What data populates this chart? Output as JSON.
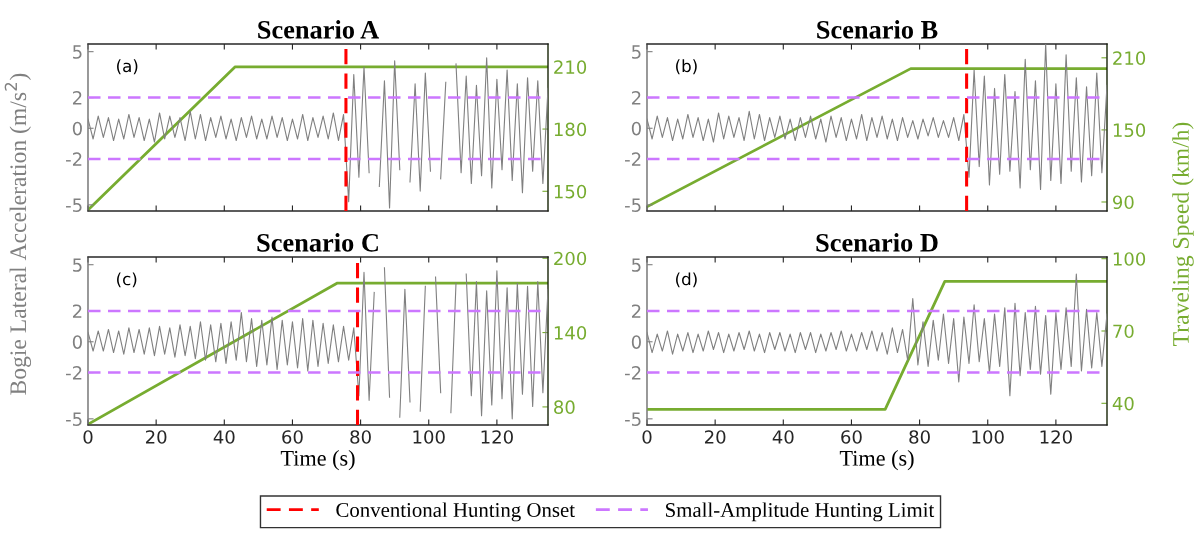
{
  "chart_data": [
    {
      "type": "line",
      "title": "Scenario A",
      "ylabel": "Bogie Lateral Acceleration (m/s$^{2}$)",
      "annotations": [
        "(a)"
      ],
      "tick_labels": "y",
      "legend": "bottom",
      "grid": false,
      "x": [
        0,
        1.5,
        3,
        4.5,
        6,
        7.5,
        9,
        10.5,
        12,
        13.5,
        15,
        16.5,
        18,
        19.5,
        21,
        22.5,
        24,
        25.5,
        27,
        28.5,
        30,
        31.5,
        33,
        34.5,
        36,
        37.5,
        39,
        40.5,
        42,
        43.5,
        45,
        46.5,
        48,
        49.5,
        51,
        52.5,
        54,
        55.5,
        57,
        58.5,
        60,
        61.5,
        63,
        64.5,
        66,
        67.5,
        69,
        70.5,
        72,
        73.5,
        75,
        76.5,
        78,
        79.5,
        81,
        82.5,
        84,
        85.5,
        87,
        88.5,
        90,
        91.5,
        93,
        94.5,
        96,
        97.5,
        99,
        100.5,
        102,
        103.5,
        105,
        106.5,
        108,
        109.5,
        111,
        112.5,
        114,
        115.5,
        117,
        118.5,
        120,
        121.5,
        123,
        124.5,
        126,
        127.5,
        129,
        130.5,
        132,
        133.5,
        135
      ],
      "xlim": [
        0,
        135
      ],
      "xticks": [
        0,
        20,
        40,
        60,
        80,
        100,
        120
      ],
      "ylim": [
        -5.4,
        5.5
      ],
      "yticks": [
        -5,
        -2,
        0,
        2,
        5
      ],
      "y2lim": [
        140.5,
        221
      ],
      "y2ticks": [
        150,
        180,
        210
      ],
      "series": [
        {
          "color": "#808080",
          "values": [
            0.6,
            -0.7,
            0.8,
            -0.6,
            0.7,
            -0.8,
            0.6,
            -0.7,
            0.9,
            -0.6,
            0.7,
            -0.8,
            0.6,
            -0.9,
            1.0,
            -0.7,
            0.8,
            -0.6,
            0.7,
            -0.8,
            1.1,
            -0.7,
            0.9,
            -0.8,
            0.7,
            -0.6,
            0.8,
            -0.7,
            0.6,
            -0.8,
            0.7,
            -0.6,
            0.8,
            -0.7,
            0.6,
            -0.7,
            0.8,
            -0.6,
            0.7,
            -0.8,
            0.6,
            -0.7,
            0.9,
            -0.8,
            0.7,
            -0.6,
            0.8,
            -0.7,
            1.0,
            -0.8,
            0.9,
            -4.8,
            3.5,
            -3.2,
            4.0,
            -2.9,
            null,
            -3.8,
            3.1,
            -5.2,
            4.4,
            -2.7,
            null,
            -3.5,
            2.9,
            -4.1,
            3.6,
            -2.8,
            null,
            -3.3,
            3.0,
            null,
            4.2,
            -2.9,
            3.4,
            -3.6,
            2.8,
            -3.1,
            4.6,
            -3.9,
            3.2,
            -2.7,
            3.8,
            -3.4,
            2.9,
            -4.2,
            3.3,
            -2.8,
            3.1,
            -3.6,
            2.6
          ]
        },
        {
          "color": "#77ac30",
          "axis": "y2",
          "x": [
            0,
            43.2,
            135
          ],
          "values": [
            141,
            210,
            210
          ]
        }
      ],
      "ref_lines": [
        {
          "axis": "x",
          "value": 75.7,
          "label": "Conventional Hunting Onset",
          "color": "#ff0000",
          "line_style": "dashed"
        },
        {
          "axis": "y",
          "value": 2,
          "label": "Small-Amplitude Hunting Limit",
          "color": "#cc77ff",
          "line_style": "dashed"
        },
        {
          "axis": "y",
          "value": -2,
          "color": "#cc77ff",
          "line_style": "dashed"
        }
      ]
    },
    {
      "type": "line",
      "title": "Scenario B",
      "y2label": "Traveling Speed (km/h)",
      "annotations": [
        "(b)"
      ],
      "tick_labels": "y",
      "grid": false,
      "x": [
        0,
        1.5,
        3,
        4.5,
        6,
        7.5,
        9,
        10.5,
        12,
        13.5,
        15,
        16.5,
        18,
        19.5,
        21,
        22.5,
        24,
        25.5,
        27,
        28.5,
        30,
        31.5,
        33,
        34.5,
        36,
        37.5,
        39,
        40.5,
        42,
        43.5,
        45,
        46.5,
        48,
        49.5,
        51,
        52.5,
        54,
        55.5,
        57,
        58.5,
        60,
        61.5,
        63,
        64.5,
        66,
        67.5,
        69,
        70.5,
        72,
        73.5,
        75,
        76.5,
        78,
        79.5,
        81,
        82.5,
        84,
        85.5,
        87,
        88.5,
        90,
        91.5,
        93,
        94.5,
        96,
        97.5,
        99,
        100.5,
        102,
        103.5,
        105,
        106.5,
        108,
        109.5,
        111,
        112.5,
        114,
        115.5,
        117,
        118.5,
        120,
        121.5,
        123,
        124.5,
        126,
        127.5,
        129,
        130.5,
        132,
        133.5,
        135
      ],
      "xlim": [
        0,
        135
      ],
      "xticks": [
        0,
        20,
        40,
        60,
        80,
        100,
        120
      ],
      "ylim": [
        -5.4,
        5.5
      ],
      "yticks": [
        -5,
        -2,
        0,
        2,
        5
      ],
      "y2lim": [
        82.5,
        221.5
      ],
      "y2ticks": [
        90,
        150,
        210
      ],
      "series": [
        {
          "color": "#808080",
          "values": [
            0.6,
            -0.7,
            0.8,
            -0.6,
            0.7,
            -0.8,
            0.6,
            -0.7,
            0.9,
            -0.6,
            0.7,
            -0.8,
            0.6,
            -0.9,
            1.0,
            -0.7,
            0.8,
            -0.6,
            0.7,
            -0.8,
            1.1,
            -0.7,
            0.9,
            -0.8,
            0.7,
            -0.6,
            0.8,
            -0.7,
            0.6,
            -0.8,
            0.7,
            -0.6,
            0.8,
            -0.7,
            0.6,
            -0.9,
            0.8,
            -0.6,
            0.7,
            -0.8,
            0.6,
            -0.7,
            0.9,
            -0.8,
            0.7,
            -0.6,
            0.8,
            -0.7,
            0.6,
            -0.8,
            0.7,
            -0.6,
            0.5,
            -0.7,
            0.6,
            -0.5,
            0.7,
            -0.6,
            0.5,
            -0.6,
            0.7,
            -0.8,
            0.9,
            -3.2,
            3.8,
            -2.5,
            3.4,
            -3.7,
            2.6,
            -3.0,
            3.5,
            -2.8,
            2.4,
            -3.9,
            4.5,
            -2.7,
            3.1,
            -4.0,
            5.5,
            -3.4,
            2.9,
            -3.6,
            4.8,
            -2.8,
            3.3,
            -3.5,
            2.7,
            -3.1,
            3.6,
            -2.9,
            2.8
          ]
        },
        {
          "color": "#77ac30",
          "axis": "y2",
          "x": [
            0,
            77.4,
            135
          ],
          "values": [
            86,
            201,
            201
          ]
        }
      ],
      "ref_lines": [
        {
          "axis": "x",
          "value": 93.8,
          "color": "#ff0000",
          "line_style": "dashed"
        },
        {
          "axis": "y",
          "value": 2,
          "color": "#cc77ff",
          "line_style": "dashed"
        },
        {
          "axis": "y",
          "value": -2,
          "color": "#cc77ff",
          "line_style": "dashed"
        }
      ]
    },
    {
      "type": "line",
      "title": "Scenario C",
      "xlabel": "Time (s)",
      "annotations": [
        "(c)"
      ],
      "grid": false,
      "x": [
        0,
        1.5,
        3,
        4.5,
        6,
        7.5,
        9,
        10.5,
        12,
        13.5,
        15,
        16.5,
        18,
        19.5,
        21,
        22.5,
        24,
        25.5,
        27,
        28.5,
        30,
        31.5,
        33,
        34.5,
        36,
        37.5,
        39,
        40.5,
        42,
        43.5,
        45,
        46.5,
        48,
        49.5,
        51,
        52.5,
        54,
        55.5,
        57,
        58.5,
        60,
        61.5,
        63,
        64.5,
        66,
        67.5,
        69,
        70.5,
        72,
        73.5,
        75,
        76.5,
        78,
        79.5,
        81,
        82.5,
        84,
        85.5,
        87,
        88.5,
        90,
        91.5,
        93,
        94.5,
        96,
        97.5,
        99,
        100.5,
        102,
        103.5,
        105,
        106.5,
        108,
        109.5,
        111,
        112.5,
        114,
        115.5,
        117,
        118.5,
        120,
        121.5,
        123,
        124.5,
        126,
        127.5,
        129,
        130.5,
        132,
        133.5,
        135
      ],
      "xlim": [
        0,
        135
      ],
      "xticks": [
        0,
        20,
        40,
        60,
        80,
        100,
        120
      ],
      "ylim": [
        -5.4,
        5.5
      ],
      "yticks": [
        -5,
        -2,
        0,
        2,
        5
      ],
      "y2lim": [
        65.4,
        201
      ],
      "y2ticks": [
        80,
        140,
        200
      ],
      "series": [
        {
          "color": "#808080",
          "values": [
            0.6,
            -0.6,
            0.7,
            -0.6,
            0.8,
            -0.7,
            0.7,
            -0.8,
            0.9,
            -0.7,
            0.8,
            -0.8,
            0.9,
            -0.9,
            1.0,
            -0.8,
            0.9,
            -1.0,
            1.1,
            -0.9,
            1.0,
            -1.1,
            1.3,
            -1.2,
            1.1,
            -1.3,
            1.2,
            -1.4,
            1.3,
            -1.2,
            1.9,
            -1.3,
            1.5,
            -1.6,
            1.4,
            -1.5,
            1.6,
            -1.8,
            1.4,
            -1.5,
            1.3,
            -1.7,
            1.5,
            -1.9,
            1.4,
            -1.6,
            1.2,
            -1.4,
            1.1,
            -1.3,
            1.0,
            -1.2,
            0.9,
            -3.5,
            4.5,
            -3.8,
            3.2,
            null,
            4.8,
            -3.6,
            null,
            -4.9,
            3.4,
            -3.9,
            null,
            -4.5,
            3.6,
            null,
            4.2,
            -3.3,
            null,
            -4.6,
            3.8,
            null,
            4.4,
            -3.5,
            3.9,
            -4.8,
            3.3,
            -4.1,
            4.6,
            -3.7,
            3.5,
            -5.0,
            3.8,
            -3.4,
            3.6,
            -4.2,
            3.9,
            -3.3,
            3.4
          ]
        },
        {
          "color": "#77ac30",
          "axis": "y2",
          "x": [
            0,
            73.2,
            135
          ],
          "values": [
            66,
            180,
            180
          ]
        }
      ],
      "ref_lines": [
        {
          "axis": "x",
          "value": 79.1,
          "color": "#ff0000",
          "line_style": "dashed"
        },
        {
          "axis": "y",
          "value": 2,
          "color": "#cc77ff",
          "line_style": "dashed"
        },
        {
          "axis": "y",
          "value": -2,
          "color": "#cc77ff",
          "line_style": "dashed"
        }
      ]
    },
    {
      "type": "line",
      "title": "Scenario D",
      "xlabel": "Time (s)",
      "annotations": [
        "(d)"
      ],
      "grid": false,
      "x": [
        0,
        1.5,
        3,
        4.5,
        6,
        7.5,
        9,
        10.5,
        12,
        13.5,
        15,
        16.5,
        18,
        19.5,
        21,
        22.5,
        24,
        25.5,
        27,
        28.5,
        30,
        31.5,
        33,
        34.5,
        36,
        37.5,
        39,
        40.5,
        42,
        43.5,
        45,
        46.5,
        48,
        49.5,
        51,
        52.5,
        54,
        55.5,
        57,
        58.5,
        60,
        61.5,
        63,
        64.5,
        66,
        67.5,
        69,
        70.5,
        72,
        73.5,
        75,
        76.5,
        78,
        79.5,
        81,
        82.5,
        84,
        85.5,
        87,
        88.5,
        90,
        91.5,
        93,
        94.5,
        96,
        97.5,
        99,
        100.5,
        102,
        103.5,
        105,
        106.5,
        108,
        109.5,
        111,
        112.5,
        114,
        115.5,
        117,
        118.5,
        120,
        121.5,
        123,
        124.5,
        126,
        127.5,
        129,
        130.5,
        132,
        133.5,
        135
      ],
      "xlim": [
        0,
        135
      ],
      "xticks": [
        0,
        20,
        40,
        60,
        80,
        100,
        120
      ],
      "ylim": [
        -5.4,
        5.5
      ],
      "yticks": [
        -5,
        -2,
        0,
        2,
        5
      ],
      "y2lim": [
        31,
        100.7
      ],
      "y2ticks": [
        40,
        70,
        100
      ],
      "series": [
        {
          "color": "#808080",
          "values": [
            0.6,
            -0.7,
            0.5,
            -0.6,
            0.7,
            -0.8,
            0.5,
            -0.6,
            0.6,
            -0.7,
            0.5,
            -0.6,
            0.7,
            -0.5,
            0.6,
            -0.7,
            0.5,
            -0.6,
            0.6,
            -0.5,
            0.7,
            -0.6,
            0.5,
            -0.7,
            0.6,
            -0.5,
            0.6,
            -0.6,
            0.5,
            -0.7,
            0.6,
            -0.5,
            0.6,
            -0.7,
            0.5,
            -0.6,
            0.6,
            -0.5,
            0.7,
            -0.6,
            0.5,
            -0.6,
            0.6,
            -0.5,
            0.7,
            -0.6,
            0.6,
            -0.8,
            0.9,
            -0.7,
            0.8,
            -1.2,
            2.8,
            -1.5,
            1.3,
            -1.6,
            1.4,
            -1.2,
            1.8,
            -1.4,
            1.5,
            -2.6,
            1.6,
            -1.4,
            2.4,
            -1.3,
            1.5,
            -2.0,
            1.8,
            -1.6,
            2.2,
            -3.5,
            2.5,
            -2.2,
            1.9,
            -1.8,
            2.3,
            -2.1,
            1.7,
            -3.4,
            1.9,
            -1.8,
            2.2,
            -1.6,
            4.4,
            -1.9,
            2.1,
            -1.7,
            1.9,
            -1.6,
            1.8
          ]
        },
        {
          "color": "#77ac30",
          "axis": "y2",
          "x": [
            0,
            69.9,
            87.4,
            135
          ],
          "values": [
            37.5,
            37.5,
            90.6,
            90.6
          ]
        }
      ],
      "ref_lines": [
        {
          "axis": "y",
          "value": 2,
          "color": "#cc77ff",
          "line_style": "dashed"
        },
        {
          "axis": "y",
          "value": -2,
          "color": "#cc77ff",
          "line_style": "dashed"
        }
      ]
    }
  ]
}
